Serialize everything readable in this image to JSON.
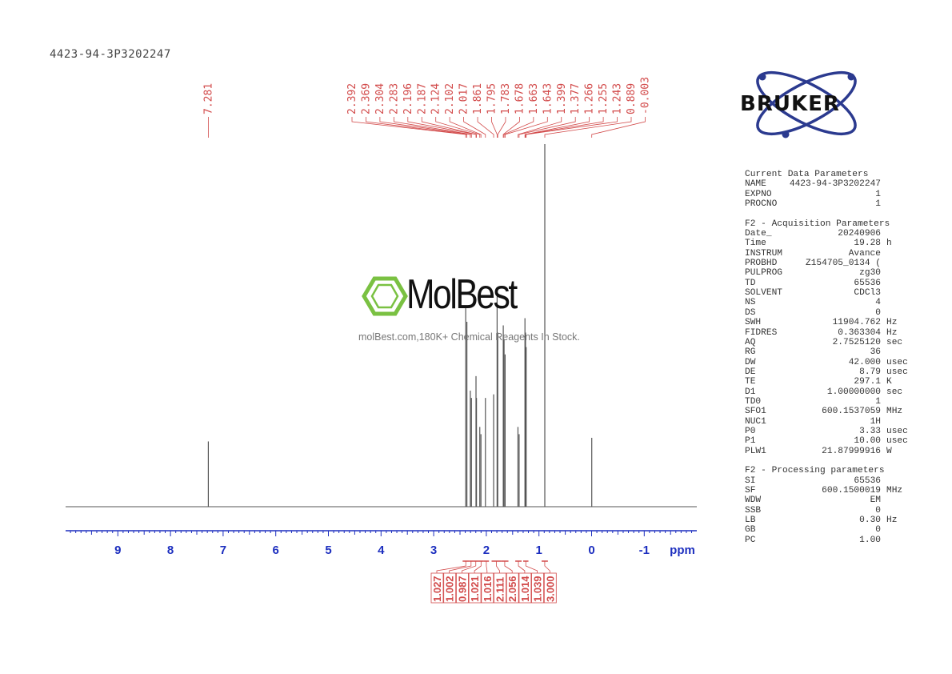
{
  "sample_name": "4423-94-3P3202247",
  "logo": {
    "brand": "BRUKER"
  },
  "watermark": {
    "brand": "MolBest",
    "text": "molBest.com,180K+ Chemical Reagents In Stock."
  },
  "colors": {
    "trace": "#555555",
    "labels": "#d24a4a",
    "axis": "#1d2fbf"
  },
  "chart_data": {
    "type": "line",
    "title": "",
    "xlabel": "ppm",
    "ylabel": "",
    "xlim": [
      10.0,
      -2.0
    ],
    "x_ticks": [
      "9",
      "8",
      "7",
      "6",
      "5",
      "4",
      "3",
      "2",
      "1",
      "0",
      "-1"
    ],
    "x_unit_label": "ppm",
    "peaks": [
      {
        "ppm": 7.281,
        "height": 0.18
      },
      {
        "ppm": 2.392,
        "height": 0.55
      },
      {
        "ppm": 2.369,
        "height": 0.51
      },
      {
        "ppm": 2.304,
        "height": 0.32
      },
      {
        "ppm": 2.283,
        "height": 0.3
      },
      {
        "ppm": 2.196,
        "height": 0.36
      },
      {
        "ppm": 2.187,
        "height": 0.3
      },
      {
        "ppm": 2.124,
        "height": 0.22
      },
      {
        "ppm": 2.102,
        "height": 0.2
      },
      {
        "ppm": 2.017,
        "height": 0.3
      },
      {
        "ppm": 1.861,
        "height": 0.31
      },
      {
        "ppm": 1.795,
        "height": 0.58
      },
      {
        "ppm": 1.783,
        "height": 0.48
      },
      {
        "ppm": 1.678,
        "height": 0.5
      },
      {
        "ppm": 1.663,
        "height": 0.46
      },
      {
        "ppm": 1.643,
        "height": 0.42
      },
      {
        "ppm": 1.399,
        "height": 0.22
      },
      {
        "ppm": 1.377,
        "height": 0.2
      },
      {
        "ppm": 1.266,
        "height": 0.52
      },
      {
        "ppm": 1.255,
        "height": 0.48
      },
      {
        "ppm": 1.243,
        "height": 0.44
      },
      {
        "ppm": 0.889,
        "height": 1.0
      },
      {
        "ppm": -0.003,
        "height": 0.19
      }
    ],
    "peak_labels": [
      "7.281",
      "2.392",
      "2.369",
      "2.304",
      "2.283",
      "2.196",
      "2.187",
      "2.124",
      "2.102",
      "2.017",
      "1.861",
      "1.795",
      "1.783",
      "1.678",
      "1.663",
      "1.643",
      "1.399",
      "1.377",
      "1.266",
      "1.255",
      "1.243",
      "0.889",
      "-0.003"
    ],
    "integrals": [
      {
        "from": 2.45,
        "to": 2.33,
        "value": "1.027"
      },
      {
        "from": 2.33,
        "to": 2.25,
        "value": "1.002"
      },
      {
        "from": 2.25,
        "to": 2.15,
        "value": "0.987"
      },
      {
        "from": 2.15,
        "to": 2.05,
        "value": "1.021"
      },
      {
        "from": 2.05,
        "to": 1.95,
        "value": "1.016"
      },
      {
        "from": 1.9,
        "to": 1.72,
        "value": "2.111"
      },
      {
        "from": 1.72,
        "to": 1.58,
        "value": "2.056"
      },
      {
        "from": 1.45,
        "to": 1.33,
        "value": "1.014"
      },
      {
        "from": 1.3,
        "to": 1.2,
        "value": "1.039"
      },
      {
        "from": 0.95,
        "to": 0.83,
        "value": "3.000"
      }
    ]
  },
  "parameters": {
    "sections": [
      {
        "title": "Current Data Parameters",
        "rows": [
          {
            "label": "NAME",
            "value": "4423-94-3P3202247",
            "unit": ""
          },
          {
            "label": "EXPNO",
            "value": "1",
            "unit": ""
          },
          {
            "label": "PROCNO",
            "value": "1",
            "unit": ""
          }
        ]
      },
      {
        "title": "F2 - Acquisition Parameters",
        "rows": [
          {
            "label": "Date_",
            "value": "20240906",
            "unit": ""
          },
          {
            "label": "Time",
            "value": "19.28",
            "unit": "h"
          },
          {
            "label": "INSTRUM",
            "value": "Avance",
            "unit": ""
          },
          {
            "label": "PROBHD",
            "value": "Z154705_0134 (",
            "unit": ""
          },
          {
            "label": "PULPROG",
            "value": "zg30",
            "unit": ""
          },
          {
            "label": "TD",
            "value": "65536",
            "unit": ""
          },
          {
            "label": "SOLVENT",
            "value": "CDCl3",
            "unit": ""
          },
          {
            "label": "NS",
            "value": "4",
            "unit": ""
          },
          {
            "label": "DS",
            "value": "0",
            "unit": ""
          },
          {
            "label": "SWH",
            "value": "11904.762",
            "unit": "Hz"
          },
          {
            "label": "FIDRES",
            "value": "0.363304",
            "unit": "Hz"
          },
          {
            "label": "AQ",
            "value": "2.7525120",
            "unit": "sec"
          },
          {
            "label": "RG",
            "value": "36",
            "unit": ""
          },
          {
            "label": "DW",
            "value": "42.000",
            "unit": "usec"
          },
          {
            "label": "DE",
            "value": "8.79",
            "unit": "usec"
          },
          {
            "label": "TE",
            "value": "297.1",
            "unit": "K"
          },
          {
            "label": "D1",
            "value": "1.00000000",
            "unit": "sec"
          },
          {
            "label": "TD0",
            "value": "1",
            "unit": ""
          },
          {
            "label": "SFO1",
            "value": "600.1537059",
            "unit": "MHz"
          },
          {
            "label": "NUC1",
            "value": "1H",
            "unit": ""
          },
          {
            "label": "P0",
            "value": "3.33",
            "unit": "usec"
          },
          {
            "label": "P1",
            "value": "10.00",
            "unit": "usec"
          },
          {
            "label": "PLW1",
            "value": "21.87999916",
            "unit": "W"
          }
        ]
      },
      {
        "title": "F2 - Processing parameters",
        "rows": [
          {
            "label": "SI",
            "value": "65536",
            "unit": ""
          },
          {
            "label": "SF",
            "value": "600.1500019",
            "unit": "MHz"
          },
          {
            "label": "WDW",
            "value": "EM",
            "unit": ""
          },
          {
            "label": "SSB",
            "value": "0",
            "unit": ""
          },
          {
            "label": "LB",
            "value": "0.30",
            "unit": "Hz"
          },
          {
            "label": "GB",
            "value": "0",
            "unit": ""
          },
          {
            "label": "PC",
            "value": "1.00",
            "unit": ""
          }
        ]
      }
    ]
  }
}
